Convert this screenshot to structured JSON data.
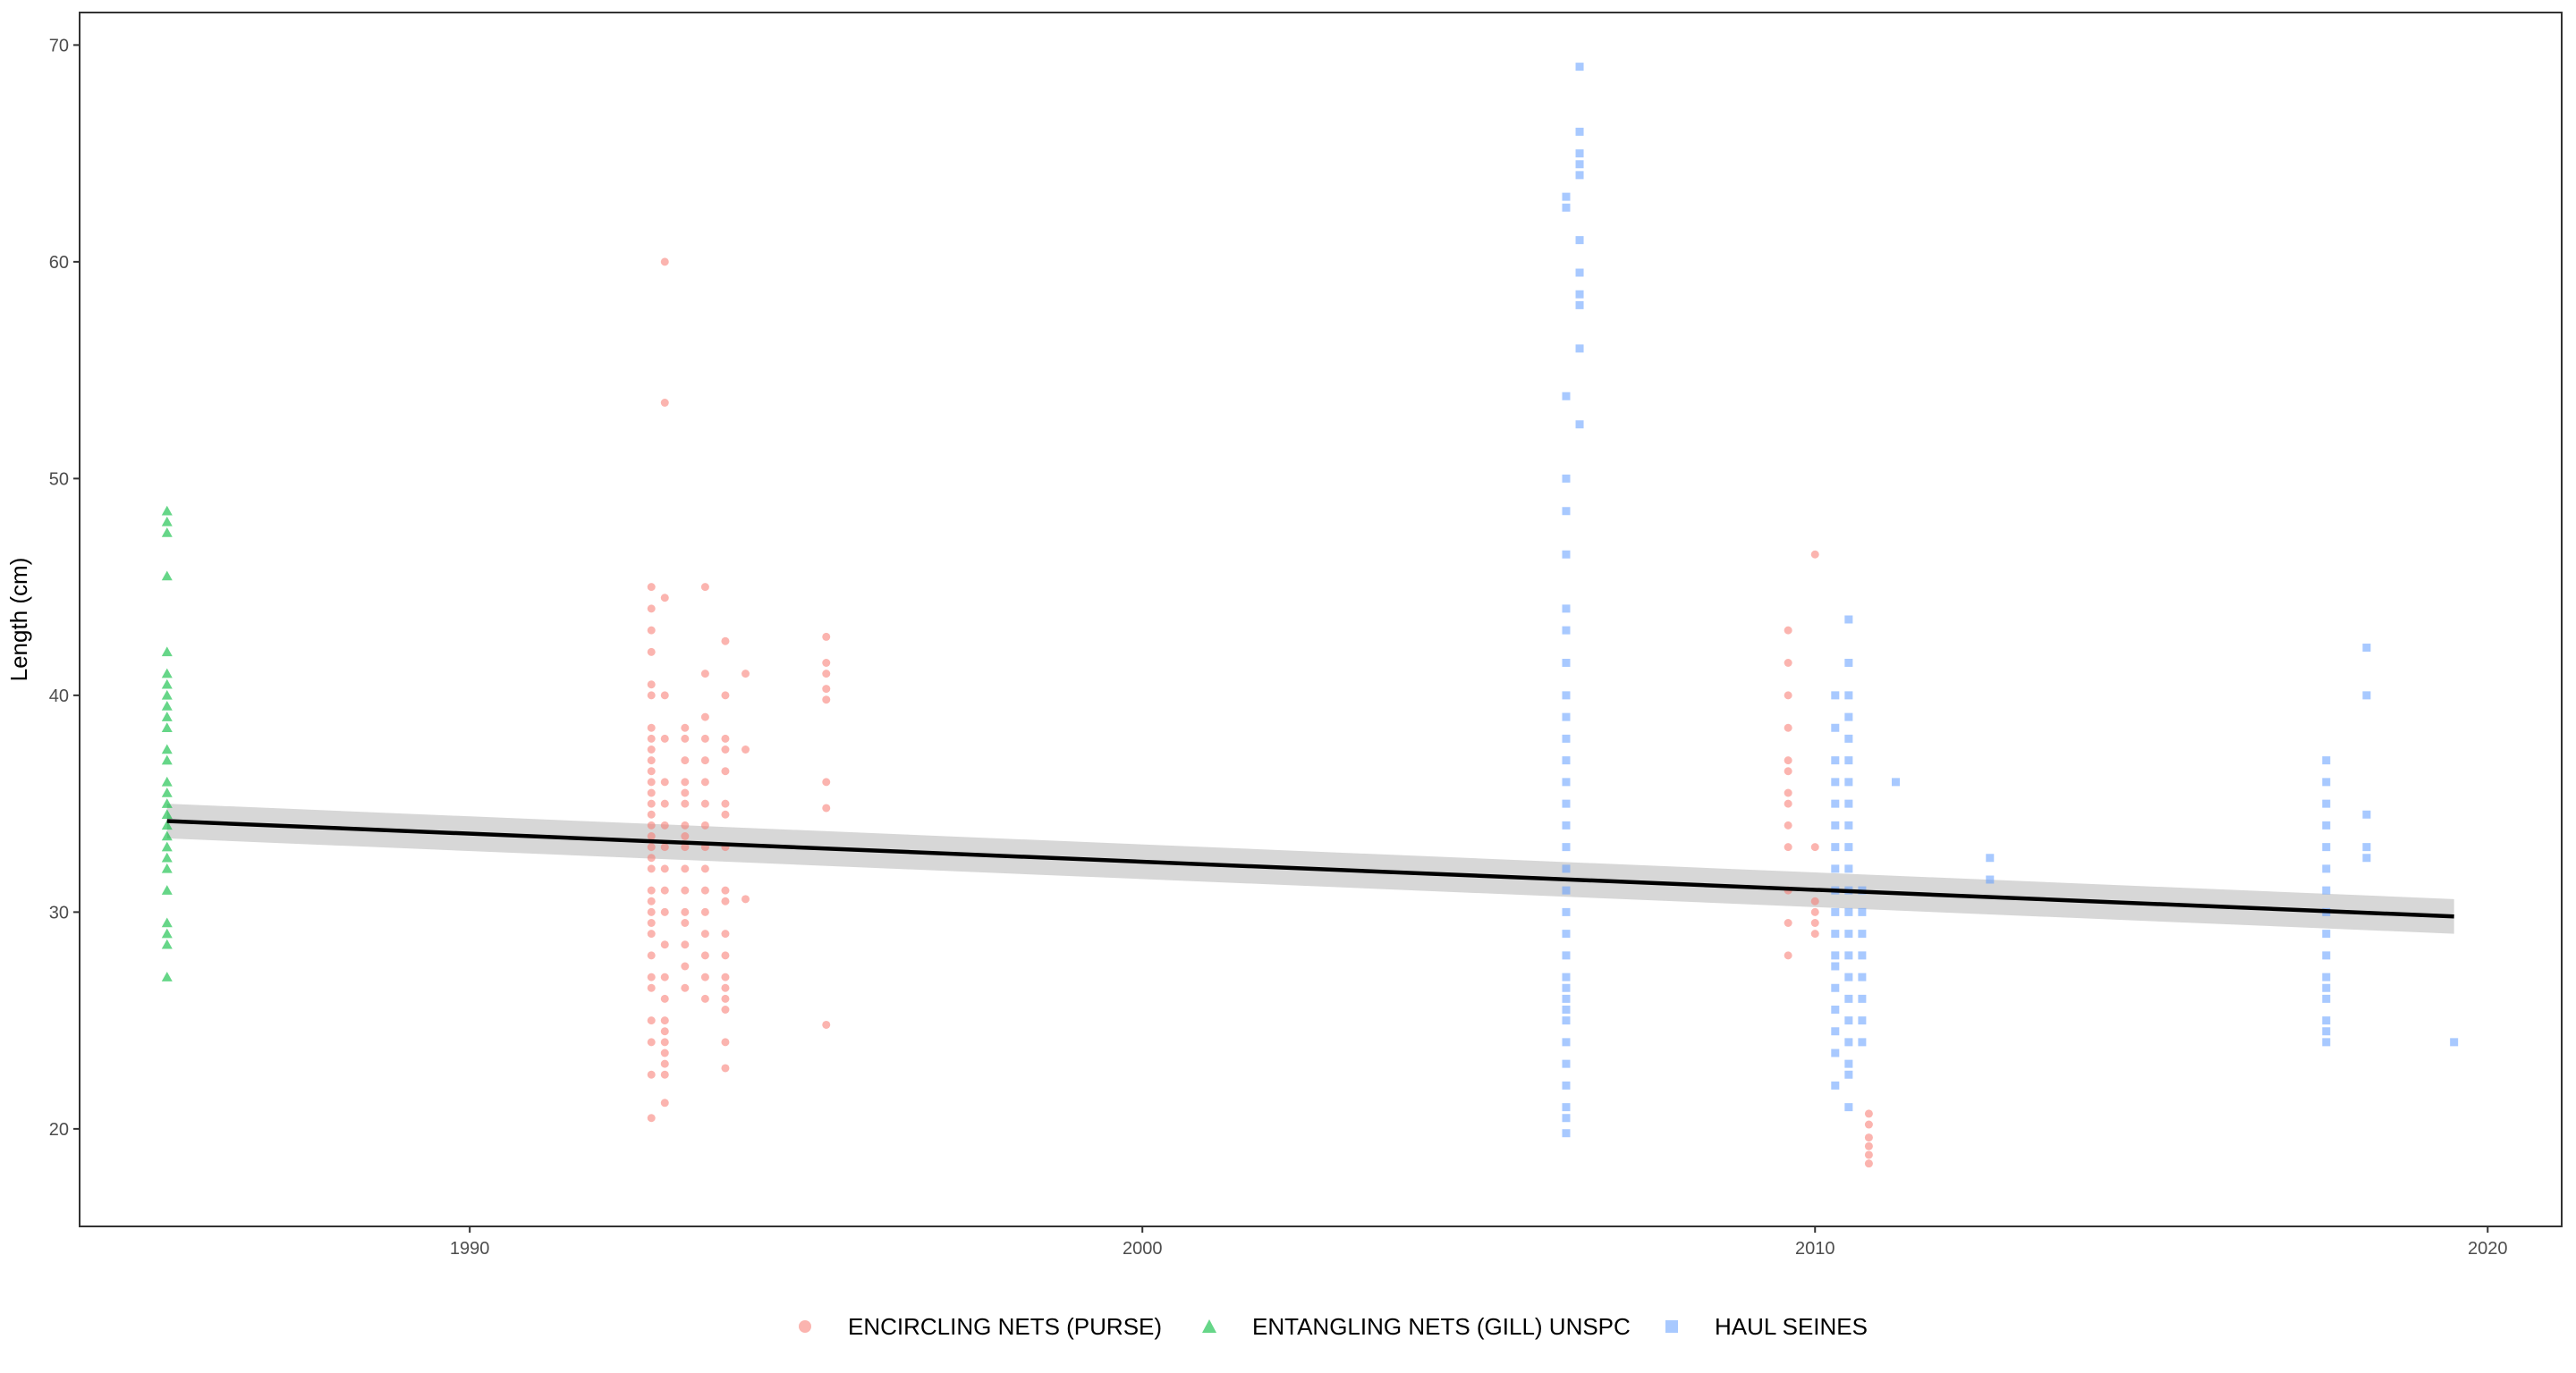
{
  "chart_data": {
    "type": "scatter",
    "title": "",
    "xlabel": "",
    "ylabel": "Length (cm)",
    "xlim": [
      1984.2,
      2021.1
    ],
    "ylim": [
      15.5,
      71.5
    ],
    "x_ticks": [
      1990,
      2000,
      2010,
      2020
    ],
    "y_ticks": [
      20,
      30,
      40,
      50,
      60,
      70
    ],
    "grid": false,
    "legend_position": "bottom",
    "colors": {
      "ENCIRCLING NETS (PURSE)": "#F8766D",
      "ENTANGLING NETS (GILL) UNSPC": "#00BA38",
      "HAUL SEINES": "#619CFF",
      "trend_line": "#000000",
      "confidence_band": "#bdbdbd"
    },
    "series": [
      {
        "name": "ENCIRCLING NETS (PURSE)",
        "marker": "circle",
        "groups": [
          {
            "x": 1992.7,
            "y": [
              20.5,
              22.5,
              24,
              25,
              26.5,
              27,
              28,
              29,
              29.5,
              30,
              30.5,
              31,
              32,
              32.5,
              33,
              33.5,
              34,
              34.5,
              35,
              35.5,
              36,
              36.5,
              37,
              37.5,
              38,
              38.5,
              40,
              40.5,
              42,
              43,
              44,
              45
            ]
          },
          {
            "x": 1992.9,
            "y": [
              21.2,
              22.5,
              23,
              23.5,
              24,
              24.5,
              25,
              26,
              27,
              28.5,
              30,
              31,
              32,
              33,
              34,
              35,
              36,
              38,
              40,
              44.5,
              53.5,
              60
            ]
          },
          {
            "x": 1993.2,
            "y": [
              26.5,
              27.5,
              28.5,
              29.5,
              30,
              31,
              32,
              33,
              33.5,
              34,
              35,
              35.5,
              36,
              37,
              38,
              38.5
            ]
          },
          {
            "x": 1993.5,
            "y": [
              26,
              27,
              28,
              29,
              30,
              31,
              32,
              33,
              34,
              35,
              36,
              37,
              38,
              39,
              41,
              45
            ]
          },
          {
            "x": 1993.8,
            "y": [
              22.8,
              24,
              25.5,
              26,
              26.5,
              27,
              28,
              29,
              30.5,
              31,
              33,
              34.5,
              35,
              36.5,
              37.5,
              38,
              40,
              42.5
            ]
          },
          {
            "x": 1994.1,
            "y": [
              30.6,
              37.5,
              41
            ]
          },
          {
            "x": 1995.3,
            "y": [
              24.8,
              34.8,
              36,
              39.8,
              40.3,
              41,
              41.5,
              42.7
            ]
          },
          {
            "x": 2009.6,
            "y": [
              28,
              29.5,
              31,
              33,
              34,
              35,
              35.5,
              36.5,
              37,
              38.5,
              40,
              41.5,
              43
            ]
          },
          {
            "x": 2010.0,
            "y": [
              29,
              29.5,
              30,
              30.5,
              33,
              46.5
            ]
          },
          {
            "x": 2010.8,
            "y": [
              18.4,
              18.8,
              19.2,
              19.6,
              20.2,
              20.7
            ]
          }
        ]
      },
      {
        "name": "ENTANGLING NETS (GILL) UNSPC",
        "marker": "triangle",
        "groups": [
          {
            "x": 1985.5,
            "y": [
              27,
              28.5,
              29,
              29.5,
              31,
              32,
              32.5,
              33,
              33.5,
              34,
              34.5,
              35,
              35.5,
              36,
              37,
              37.5,
              38.5,
              39,
              39.5,
              40,
              40.5,
              41,
              42,
              45.5,
              47.5,
              48,
              48.5
            ]
          }
        ]
      },
      {
        "name": "HAUL SEINES",
        "marker": "square",
        "groups": [
          {
            "x": 2006.3,
            "y": [
              19.8,
              20.5,
              21,
              22,
              23,
              24,
              25,
              25.5,
              26,
              26.5,
              27,
              28,
              29,
              30,
              31,
              32,
              33,
              34,
              35,
              36,
              37,
              38,
              39,
              40,
              41.5,
              43,
              44,
              46.5,
              48.5,
              50,
              53.8,
              62.5,
              63
            ]
          },
          {
            "x": 2006.5,
            "y": [
              52.5,
              56,
              58,
              58.5,
              59.5,
              61,
              64,
              64.5,
              65,
              66,
              69
            ]
          },
          {
            "x": 2010.3,
            "y": [
              22,
              23.5,
              24.5,
              25.5,
              26.5,
              27.5,
              28,
              29,
              30,
              31,
              32,
              33,
              34,
              35,
              36,
              37,
              38.5,
              40
            ]
          },
          {
            "x": 2010.5,
            "y": [
              21,
              22.5,
              23,
              24,
              25,
              26,
              27,
              28,
              29,
              30,
              31,
              32,
              33,
              34,
              35,
              36,
              37,
              38,
              39,
              40,
              41.5,
              43.5
            ]
          },
          {
            "x": 2010.7,
            "y": [
              24,
              25,
              26,
              27,
              28,
              29,
              30,
              31
            ]
          },
          {
            "x": 2011.2,
            "y": [
              36
            ]
          },
          {
            "x": 2012.6,
            "y": [
              31.5,
              32.5
            ]
          },
          {
            "x": 2017.6,
            "y": [
              24,
              24.5,
              25,
              26,
              26.5,
              27,
              28,
              29,
              30,
              31,
              32,
              33,
              34,
              35,
              36,
              37
            ]
          },
          {
            "x": 2018.2,
            "y": [
              32.5,
              33,
              34.5,
              40,
              42.2
            ]
          },
          {
            "x": 2019.5,
            "y": [
              24
            ]
          }
        ]
      }
    ],
    "trend": {
      "x": [
        1985.5,
        2019.5
      ],
      "y": [
        34.2,
        29.8
      ],
      "band_halfwidth": [
        0.8,
        0.8
      ]
    }
  }
}
